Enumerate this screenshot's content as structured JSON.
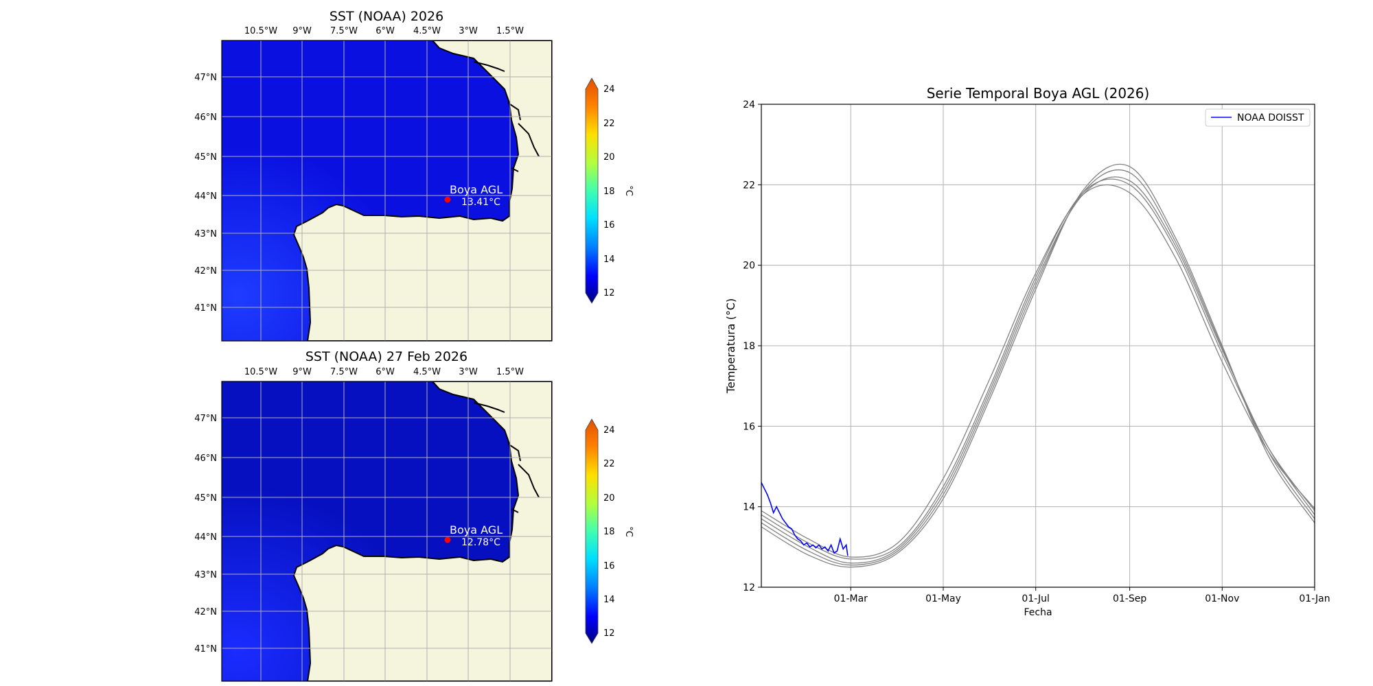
{
  "map_top": {
    "title": "SST (NOAA) 2026",
    "buoy_label": "Boya AGL",
    "buoy_value": "13.41°C"
  },
  "map_bottom": {
    "title": "SST (NOAA) 27 Feb 2026",
    "buoy_label": "Boya AGL",
    "buoy_value": "12.78°C"
  },
  "lon_ticks": [
    "10.5°W",
    "9°W",
    "7.5°W",
    "6°W",
    "4.5°W",
    "3°W",
    "1.5°W"
  ],
  "lat_ticks": [
    "47°N",
    "46°N",
    "45°N",
    "44°N",
    "43°N",
    "42°N",
    "41°N"
  ],
  "colorbar": {
    "unit": "°C",
    "ticks": [
      "24",
      "22",
      "20",
      "18",
      "16",
      "14",
      "12"
    ],
    "colors": [
      "#00007f",
      "#0000ff",
      "#0080ff",
      "#00e0ff",
      "#40ffb0",
      "#b0ff40",
      "#ffe000",
      "#ff8000",
      "#e05000"
    ]
  },
  "colors": {
    "land": "#f5f4dc",
    "sea_top": "#0a10e0",
    "sea_bottom": "#0610c8",
    "buoy": "#ff0000",
    "climatology": "#808080",
    "observed": "#0000ff",
    "grid": "#b0b0b0"
  },
  "chart_data": {
    "type": "line",
    "title": "Serie Temporal Boya AGL (2026)",
    "xlabel": "Fecha",
    "ylabel": "Temperatura (°C)",
    "x_axis_type": "date",
    "xlim": [
      "2026-01-01",
      "2027-01-01"
    ],
    "ylim": [
      12,
      24
    ],
    "x_ticks": [
      "2026-03-01",
      "2026-05-01",
      "2026-07-01",
      "2026-09-01",
      "2026-11-01",
      "2027-01-01"
    ],
    "x_tick_labels": [
      "01-Mar",
      "01-May",
      "01-Jul",
      "01-Sep",
      "01-Nov",
      "01-Jan"
    ],
    "y_ticks": [
      12,
      14,
      16,
      18,
      20,
      22,
      24
    ],
    "grid": true,
    "legend": "top-right",
    "series": [
      {
        "name": "NOAA DOISST",
        "color": "#0000ff",
        "x": [
          "2026-01-01",
          "2026-01-03",
          "2026-01-05",
          "2026-01-07",
          "2026-01-09",
          "2026-01-11",
          "2026-01-13",
          "2026-01-15",
          "2026-01-17",
          "2026-01-19",
          "2026-01-21",
          "2026-01-23",
          "2026-01-25",
          "2026-01-27",
          "2026-01-29",
          "2026-01-31",
          "2026-02-02",
          "2026-02-04",
          "2026-02-06",
          "2026-02-08",
          "2026-02-10",
          "2026-02-12",
          "2026-02-14",
          "2026-02-16",
          "2026-02-18",
          "2026-02-20",
          "2026-02-22",
          "2026-02-24",
          "2026-02-26",
          "2026-02-27"
        ],
        "y": [
          14.6,
          14.45,
          14.3,
          14.1,
          13.85,
          14.0,
          13.85,
          13.7,
          13.6,
          13.5,
          13.45,
          13.3,
          13.2,
          13.15,
          13.05,
          13.1,
          13.0,
          13.05,
          12.98,
          13.05,
          12.95,
          13.0,
          12.9,
          13.05,
          12.85,
          12.9,
          13.2,
          12.95,
          13.05,
          12.78
        ]
      },
      {
        "color": "#808080",
        "x": [
          "2026-01-01",
          "2026-02-01",
          "2026-03-01",
          "2026-04-01",
          "2026-05-01",
          "2026-06-01",
          "2026-07-01",
          "2026-08-01",
          "2026-09-01",
          "2026-10-01",
          "2026-11-01",
          "2026-12-01",
          "2027-01-01"
        ],
        "y": [
          13.9,
          13.2,
          12.75,
          13.1,
          14.7,
          17.2,
          19.8,
          21.75,
          21.8,
          20.2,
          17.6,
          15.4,
          13.95
        ]
      },
      {
        "color": "#808080",
        "x": [
          "2026-01-01",
          "2026-02-01",
          "2026-03-01",
          "2026-04-01",
          "2026-05-01",
          "2026-06-01",
          "2026-07-01",
          "2026-08-01",
          "2026-09-01",
          "2026-10-01",
          "2026-11-01",
          "2026-12-01",
          "2027-01-01"
        ],
        "y": [
          13.8,
          13.1,
          12.7,
          13.0,
          14.5,
          17.0,
          19.7,
          21.8,
          22.0,
          20.4,
          17.8,
          15.5,
          13.9
        ]
      },
      {
        "color": "#808080",
        "x": [
          "2026-01-01",
          "2026-02-01",
          "2026-03-01",
          "2026-04-01",
          "2026-05-01",
          "2026-06-01",
          "2026-07-01",
          "2026-08-01",
          "2026-09-01",
          "2026-10-01",
          "2026-11-01",
          "2026-12-01",
          "2027-01-01"
        ],
        "y": [
          13.7,
          13.0,
          12.6,
          12.95,
          14.4,
          16.9,
          19.6,
          21.75,
          22.1,
          20.5,
          17.9,
          15.5,
          13.8
        ]
      },
      {
        "color": "#808080",
        "x": [
          "2026-01-01",
          "2026-02-01",
          "2026-03-01",
          "2026-04-01",
          "2026-05-01",
          "2026-06-01",
          "2026-07-01",
          "2026-08-01",
          "2026-09-01",
          "2026-10-01",
          "2026-11-01",
          "2026-12-01",
          "2027-01-01"
        ],
        "y": [
          13.6,
          12.9,
          12.55,
          12.9,
          14.3,
          16.8,
          19.5,
          21.8,
          22.3,
          20.6,
          17.95,
          15.4,
          13.7
        ]
      },
      {
        "color": "#808080",
        "x": [
          "2026-01-01",
          "2026-02-01",
          "2026-03-01",
          "2026-04-01",
          "2026-05-01",
          "2026-06-01",
          "2026-07-01",
          "2026-08-01",
          "2026-09-01",
          "2026-10-01",
          "2026-11-01",
          "2026-12-01",
          "2027-01-01"
        ],
        "y": [
          13.5,
          12.8,
          12.5,
          12.85,
          14.2,
          16.7,
          19.4,
          21.85,
          22.45,
          20.7,
          18.0,
          15.3,
          13.6
        ]
      }
    ]
  }
}
